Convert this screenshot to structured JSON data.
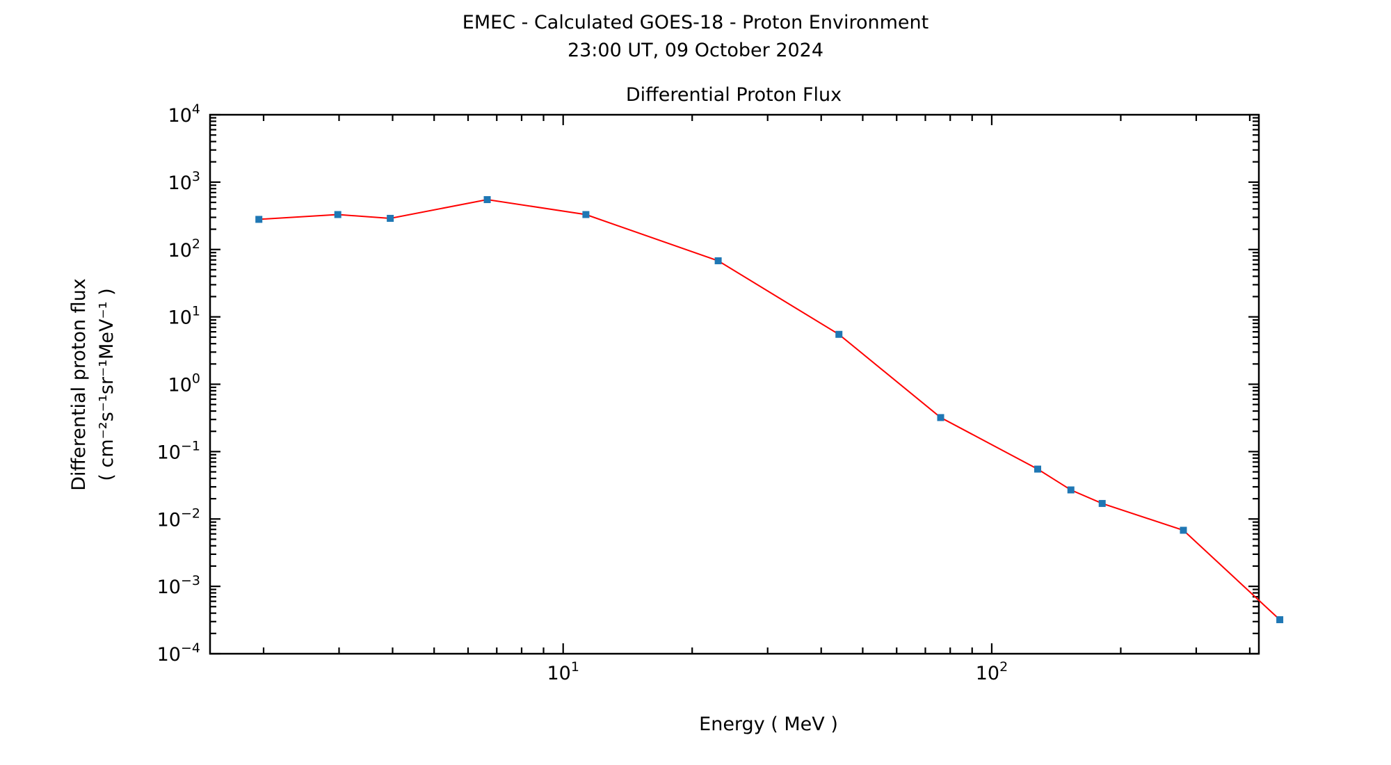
{
  "page": {
    "title_line1": "EMEC - Calculated GOES-18 - Proton Environment",
    "title_line2": "23:00 UT, 09 October 2024"
  },
  "chart_data": {
    "type": "line",
    "title": "Differential Proton Flux",
    "xlabel": "Energy ( MeV )",
    "ylabel": "Differential proton flux",
    "ylabel_units": "( cm⁻²s⁻¹sr⁻¹MeV⁻¹ )",
    "xscale": "log",
    "yscale": "log",
    "xlim": [
      1.5,
      420
    ],
    "ylim": [
      0.0001,
      10000
    ],
    "x_tick_labels": [
      {
        "value": 10,
        "base": "10",
        "exp": "1"
      },
      {
        "value": 100,
        "base": "10",
        "exp": "2"
      }
    ],
    "y_tick_labels": [
      {
        "value": 10000,
        "base": "10",
        "exp": "4"
      },
      {
        "value": 1000,
        "base": "10",
        "exp": "3"
      },
      {
        "value": 100,
        "base": "10",
        "exp": "2"
      },
      {
        "value": 10,
        "base": "10",
        "exp": "1"
      },
      {
        "value": 1,
        "base": "10",
        "exp": "0"
      },
      {
        "value": 0.1,
        "base": "10",
        "exp": "−1"
      },
      {
        "value": 0.01,
        "base": "10",
        "exp": "−2"
      },
      {
        "value": 0.001,
        "base": "10",
        "exp": "−3"
      },
      {
        "value": 0.0001,
        "base": "10",
        "exp": "−4"
      }
    ],
    "grid": false,
    "line_color": "#ff0000",
    "marker_color": "#1f77b4",
    "series": [
      {
        "x": [
          1.95,
          2.98,
          3.95,
          6.65,
          11.3,
          23.0,
          44.0,
          76.0,
          128.0,
          153.0,
          181.0,
          280.0,
          470.0
        ],
        "y": [
          280,
          330,
          290,
          550,
          330,
          68,
          5.5,
          0.32,
          0.055,
          0.027,
          0.017,
          0.0068,
          0.00032
        ]
      }
    ]
  }
}
